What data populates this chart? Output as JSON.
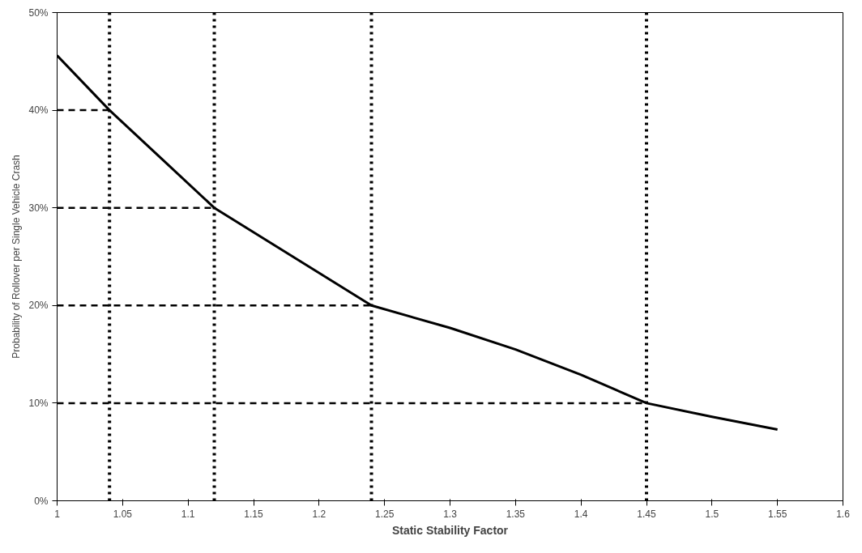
{
  "chart_data": {
    "type": "line",
    "xlabel": "Static Stability Factor",
    "ylabel": "Probability of Rollover per Single Vehicle Crash",
    "x": [
      1.0,
      1.04,
      1.08,
      1.12,
      1.18,
      1.24,
      1.3,
      1.35,
      1.4,
      1.45,
      1.5,
      1.55
    ],
    "series": [
      {
        "color": "#000000",
        "values": [
          45.6,
          40,
          35,
          30,
          25,
          20,
          17.7,
          15.5,
          12.9,
          10,
          8.6,
          7.3
        ]
      },
      {
        "color": "#000000",
        "line_style": "dashed",
        "x": [
          1,
          1.04
        ],
        "values": [
          40,
          40
        ]
      },
      {
        "color": "#000000",
        "line_style": "dashed",
        "x": [
          1,
          1.12
        ],
        "values": [
          30,
          30
        ]
      },
      {
        "color": "#000000",
        "line_style": "dashed",
        "x": [
          1,
          1.24
        ],
        "values": [
          20,
          20
        ]
      },
      {
        "color": "#000000",
        "line_style": "dashed",
        "x": [
          1,
          1.45
        ],
        "values": [
          10,
          10
        ]
      }
    ],
    "xlim": [
      1,
      1.6
    ],
    "xticks": [
      1,
      1.05,
      1.1,
      1.15,
      1.2,
      1.25,
      1.3,
      1.35,
      1.4,
      1.45,
      1.5,
      1.55,
      1.6
    ],
    "ylim": [
      0,
      50
    ],
    "yticks": [
      {
        "value": 0,
        "label": "0%"
      },
      {
        "value": 10,
        "label": "10%"
      },
      {
        "value": 20,
        "label": "20%"
      },
      {
        "value": 30,
        "label": "30%"
      },
      {
        "value": 40,
        "label": "40%"
      },
      {
        "value": 50,
        "label": "50%"
      }
    ],
    "ref_lines": [
      {
        "axis": "x",
        "value": 1.04,
        "color": "#000000",
        "line_style": "dotted"
      },
      {
        "axis": "x",
        "value": 1.12,
        "color": "#000000",
        "line_style": "dotted"
      },
      {
        "axis": "x",
        "value": 1.24,
        "color": "#000000",
        "line_style": "dotted"
      },
      {
        "axis": "x",
        "value": 1.45,
        "color": "#000000",
        "line_style": "dotted"
      }
    ],
    "grid": false,
    "marker": "none",
    "line_style": "solid"
  }
}
